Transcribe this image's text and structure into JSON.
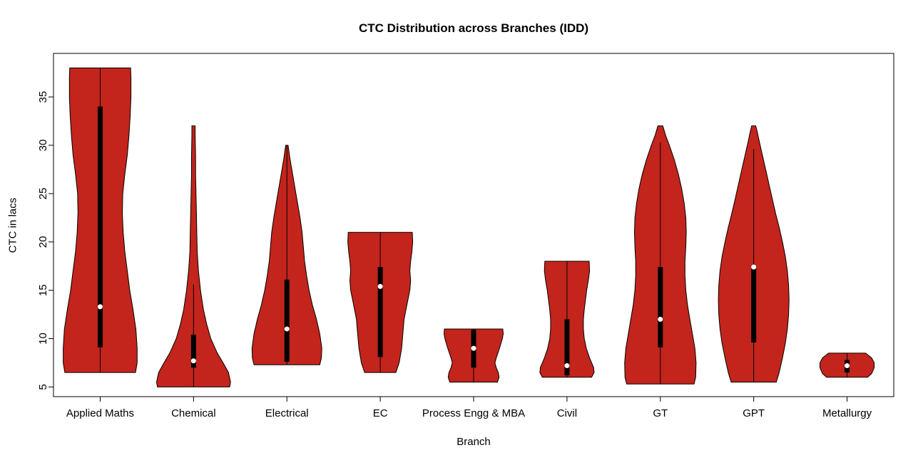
{
  "window": {
    "background": "#FFFFFF"
  },
  "chart_data": {
    "type": "violin",
    "title": "CTC Distribution across Branches (IDD)",
    "xlabel": "Branch",
    "ylabel": "CTC in lacs",
    "ylim": [
      4.0,
      39.5
    ],
    "yticks": [
      5,
      10,
      15,
      20,
      25,
      30,
      35
    ],
    "grid": false,
    "legend": "none",
    "violin_color": "#C3241C",
    "outline_color": "#000000",
    "box_color": "#000000",
    "median_dot_color": "#FFFFFF",
    "categories": [
      "Applied Maths",
      "Chemical",
      "Electrical",
      "EC",
      "Process Engg & MBA",
      "Civil",
      "GT",
      "GPT",
      "Metallurgy"
    ],
    "violins": [
      {
        "branch": "Applied Maths",
        "min": 6.5,
        "max": 38.0,
        "q1": 9.1,
        "median": 13.3,
        "q3": 34.0,
        "whisker_low": 6.5,
        "whisker_high": 38.0,
        "shape": [
          [
            6.5,
            0.86
          ],
          [
            7.5,
            0.9
          ],
          [
            9,
            0.9
          ],
          [
            11,
            0.87
          ],
          [
            13,
            0.8
          ],
          [
            15,
            0.72
          ],
          [
            17,
            0.66
          ],
          [
            19,
            0.6
          ],
          [
            21,
            0.56
          ],
          [
            23,
            0.54
          ],
          [
            25,
            0.55
          ],
          [
            27,
            0.6
          ],
          [
            29,
            0.66
          ],
          [
            31,
            0.7
          ],
          [
            33,
            0.73
          ],
          [
            35,
            0.75
          ],
          [
            37,
            0.75
          ],
          [
            38,
            0.74
          ]
        ]
      },
      {
        "branch": "Chemical",
        "min": 5.0,
        "max": 32.0,
        "q1": 7.0,
        "median": 7.7,
        "q3": 10.4,
        "whisker_low": 5.0,
        "whisker_high": 15.6,
        "shape": [
          [
            5,
            0.88
          ],
          [
            5.5,
            0.9
          ],
          [
            6.5,
            0.85
          ],
          [
            7.5,
            0.72
          ],
          [
            8.5,
            0.58
          ],
          [
            10,
            0.42
          ],
          [
            11.5,
            0.32
          ],
          [
            13,
            0.24
          ],
          [
            15,
            0.17
          ],
          [
            17,
            0.12
          ],
          [
            19,
            0.09
          ],
          [
            21,
            0.08
          ],
          [
            23,
            0.07
          ],
          [
            25,
            0.06
          ],
          [
            27,
            0.05
          ],
          [
            29,
            0.05
          ],
          [
            31,
            0.04
          ],
          [
            32,
            0.04
          ]
        ]
      },
      {
        "branch": "Electrical",
        "min": 7.3,
        "max": 30.0,
        "q1": 7.6,
        "median": 11.0,
        "q3": 16.1,
        "whisker_low": 7.3,
        "whisker_high": 30.0,
        "shape": [
          [
            7.3,
            0.8
          ],
          [
            8,
            0.84
          ],
          [
            9,
            0.85
          ],
          [
            10.5,
            0.8
          ],
          [
            12,
            0.72
          ],
          [
            13.5,
            0.62
          ],
          [
            15,
            0.54
          ],
          [
            16.5,
            0.48
          ],
          [
            18,
            0.43
          ],
          [
            19.5,
            0.4
          ],
          [
            21,
            0.37
          ],
          [
            22.5,
            0.32
          ],
          [
            24,
            0.26
          ],
          [
            25.5,
            0.2
          ],
          [
            27,
            0.14
          ],
          [
            28.5,
            0.08
          ],
          [
            30,
            0.03
          ]
        ]
      },
      {
        "branch": "EC",
        "min": 6.5,
        "max": 21.0,
        "q1": 8.1,
        "median": 15.4,
        "q3": 17.4,
        "whisker_low": 6.5,
        "whisker_high": 21.0,
        "shape": [
          [
            6.5,
            0.38
          ],
          [
            7.5,
            0.46
          ],
          [
            9,
            0.52
          ],
          [
            10.5,
            0.55
          ],
          [
            12,
            0.58
          ],
          [
            13.5,
            0.65
          ],
          [
            15,
            0.72
          ],
          [
            16,
            0.74
          ],
          [
            17,
            0.72
          ],
          [
            18,
            0.74
          ],
          [
            19,
            0.77
          ],
          [
            20,
            0.79
          ],
          [
            21,
            0.78
          ]
        ]
      },
      {
        "branch": "Process Engg & MBA",
        "min": 5.5,
        "max": 11.0,
        "q1": 7.0,
        "median": 9.0,
        "q3": 10.9,
        "whisker_low": 5.5,
        "whisker_high": 11.0,
        "shape": [
          [
            5.5,
            0.58
          ],
          [
            6,
            0.62
          ],
          [
            6.5,
            0.6
          ],
          [
            7,
            0.55
          ],
          [
            7.5,
            0.52
          ],
          [
            8,
            0.55
          ],
          [
            9,
            0.63
          ],
          [
            10,
            0.7
          ],
          [
            10.5,
            0.72
          ],
          [
            11,
            0.71
          ]
        ]
      },
      {
        "branch": "Civil",
        "min": 6.0,
        "max": 18.0,
        "q1": 6.2,
        "median": 7.2,
        "q3": 12.0,
        "whisker_low": 6.0,
        "whisker_high": 18.0,
        "shape": [
          [
            6,
            0.6
          ],
          [
            6.5,
            0.66
          ],
          [
            7,
            0.65
          ],
          [
            8,
            0.55
          ],
          [
            9,
            0.47
          ],
          [
            10,
            0.42
          ],
          [
            11,
            0.4
          ],
          [
            12,
            0.4
          ],
          [
            13,
            0.42
          ],
          [
            14,
            0.45
          ],
          [
            15,
            0.48
          ],
          [
            16,
            0.52
          ],
          [
            17,
            0.55
          ],
          [
            18,
            0.54
          ]
        ]
      },
      {
        "branch": "GT",
        "min": 5.3,
        "max": 32.0,
        "q1": 9.1,
        "median": 12.0,
        "q3": 17.4,
        "whisker_low": 5.3,
        "whisker_high": 30.3,
        "shape": [
          [
            5.3,
            0.82
          ],
          [
            6,
            0.86
          ],
          [
            7.5,
            0.87
          ],
          [
            9,
            0.84
          ],
          [
            10.5,
            0.78
          ],
          [
            12,
            0.72
          ],
          [
            13.5,
            0.66
          ],
          [
            15,
            0.62
          ],
          [
            16.5,
            0.6
          ],
          [
            18,
            0.6
          ],
          [
            19.5,
            0.62
          ],
          [
            21,
            0.63
          ],
          [
            22.5,
            0.62
          ],
          [
            24,
            0.58
          ],
          [
            25.5,
            0.52
          ],
          [
            27,
            0.44
          ],
          [
            28.5,
            0.34
          ],
          [
            30,
            0.22
          ],
          [
            31,
            0.13
          ],
          [
            32,
            0.06
          ]
        ]
      },
      {
        "branch": "GPT",
        "min": 5.5,
        "max": 32.0,
        "q1": 9.6,
        "median": 17.4,
        "q3": 17.5,
        "whisker_low": 5.5,
        "whisker_high": 29.6,
        "shape": [
          [
            5.5,
            0.55
          ],
          [
            6.5,
            0.62
          ],
          [
            8,
            0.7
          ],
          [
            9.5,
            0.77
          ],
          [
            11,
            0.82
          ],
          [
            12.5,
            0.85
          ],
          [
            14,
            0.86
          ],
          [
            15.5,
            0.85
          ],
          [
            17,
            0.82
          ],
          [
            18.5,
            0.77
          ],
          [
            20,
            0.7
          ],
          [
            21.5,
            0.62
          ],
          [
            23,
            0.53
          ],
          [
            24.5,
            0.45
          ],
          [
            26,
            0.37
          ],
          [
            27.5,
            0.29
          ],
          [
            29,
            0.21
          ],
          [
            30.5,
            0.13
          ],
          [
            31.5,
            0.08
          ],
          [
            32,
            0.05
          ]
        ]
      },
      {
        "branch": "Metallurgy",
        "min": 6.0,
        "max": 8.5,
        "q1": 6.5,
        "median": 7.2,
        "q3": 7.8,
        "whisker_low": 6.0,
        "whisker_high": 8.5,
        "shape": [
          [
            6,
            0.5
          ],
          [
            6.4,
            0.6
          ],
          [
            7,
            0.66
          ],
          [
            7.5,
            0.66
          ],
          [
            8,
            0.6
          ],
          [
            8.5,
            0.45
          ]
        ]
      }
    ]
  }
}
